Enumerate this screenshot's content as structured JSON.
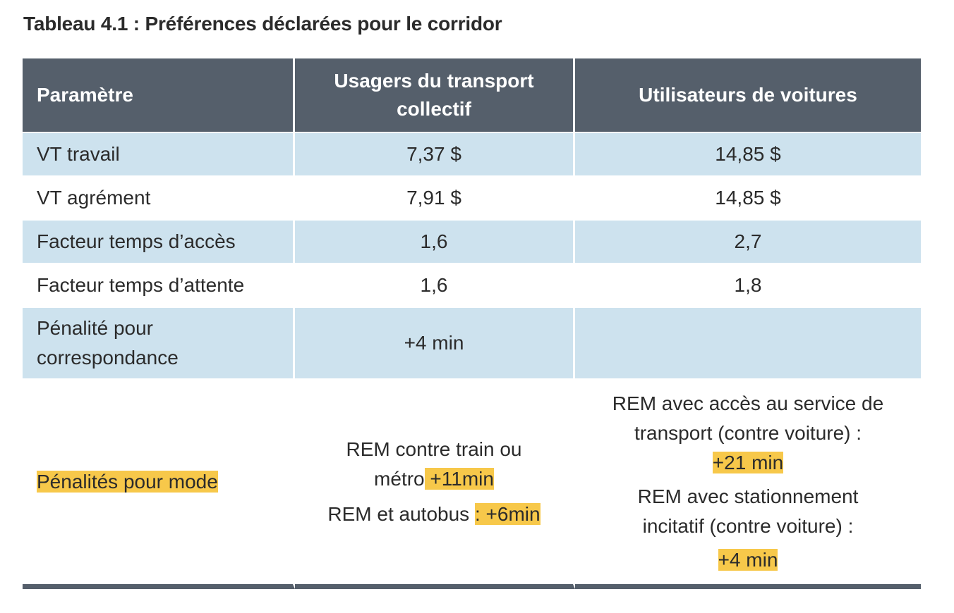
{
  "title": "Tableau 4.1 : Préférences déclarées pour le corridor",
  "header": {
    "col1": "Paramètre",
    "col2": "Usagers du transport collectif",
    "col3": "Utilisateurs de voitures"
  },
  "rows": [
    {
      "param": "VT travail",
      "transit": "7,37 $",
      "car": "14,85 $"
    },
    {
      "param": "VT agrément",
      "transit": "7,91 $",
      "car": "14,85 $"
    },
    {
      "param": "Facteur temps d’accès",
      "transit": "1,6",
      "car": "2,7"
    },
    {
      "param": "Facteur temps d’attente",
      "transit": "1,6",
      "car": "1,8"
    },
    {
      "param": "Pénalité pour correspondance",
      "transit": "+4 min",
      "car": ""
    }
  ],
  "mode_row": {
    "param": "Pénalités pour mode",
    "transit_line1": "REM contre train ou",
    "transit_line2_prefix": "métro",
    "transit_line2_value": " +11min",
    "transit_line3_prefix": "REM et autobus ",
    "transit_line3_value": ": +6min",
    "car_line1": "REM avec accès au service de",
    "car_line2": "transport (contre voiture) :",
    "car_line3_value": "+21 min",
    "car_line4": "REM avec stationnement",
    "car_line5": "incitatif (contre voiture) :",
    "car_line6_value": "+4 min"
  },
  "colors": {
    "header_bg": "#555f6b",
    "shade_bg": "#cde2ee",
    "highlight": "#f7c84a"
  }
}
